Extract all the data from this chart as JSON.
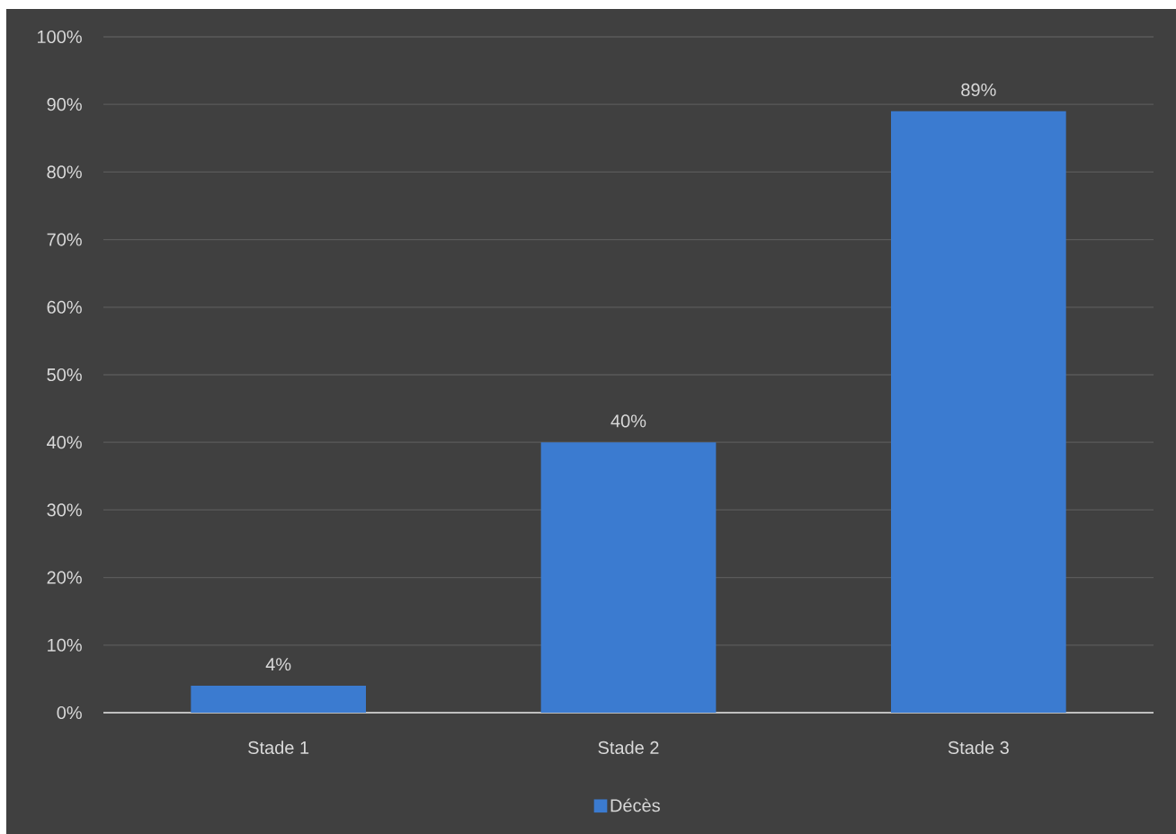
{
  "chart_data": {
    "type": "bar",
    "categories": [
      "Stade 1",
      "Stade 2",
      "Stade 3"
    ],
    "series": [
      {
        "name": "Décès",
        "color": "#3b7bd0",
        "values": [
          4,
          40,
          89
        ],
        "value_labels": [
          "4%",
          "40%",
          "89%"
        ]
      }
    ],
    "ylim": [
      0,
      100
    ],
    "yticks": [
      {
        "value": 0,
        "label": "0%"
      },
      {
        "value": 10,
        "label": "10%"
      },
      {
        "value": 20,
        "label": "20%"
      },
      {
        "value": 30,
        "label": "30%"
      },
      {
        "value": 40,
        "label": "40%"
      },
      {
        "value": 50,
        "label": "50%"
      },
      {
        "value": 60,
        "label": "60%"
      },
      {
        "value": 70,
        "label": "70%"
      },
      {
        "value": 80,
        "label": "80%"
      },
      {
        "value": 90,
        "label": "90%"
      },
      {
        "value": 100,
        "label": "100%"
      }
    ],
    "grid": "y",
    "legend": "bottom"
  }
}
